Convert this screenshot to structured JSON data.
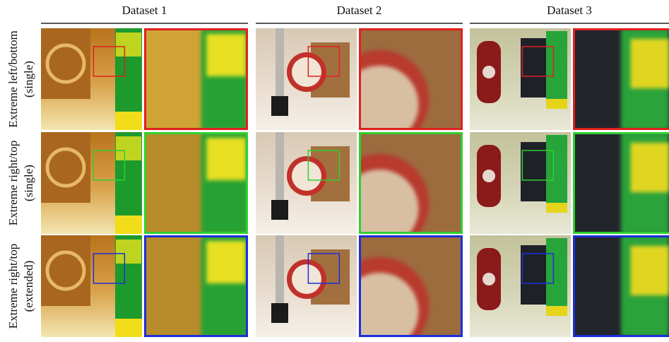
{
  "columns": [
    "Dataset 1",
    "Dataset 2",
    "Dataset 3"
  ],
  "rows": [
    {
      "line1": "Extreme left/bottom",
      "line2": "(single)"
    },
    {
      "line1": "Extreme right/top",
      "line2": "(single)"
    },
    {
      "line1": "Extreme right/top",
      "line2": "(extended)"
    }
  ]
}
